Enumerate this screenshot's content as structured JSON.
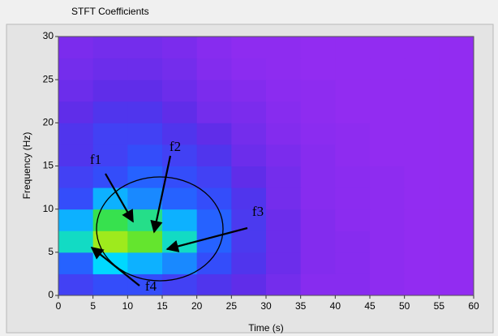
{
  "chart_data": {
    "type": "heatmap",
    "title": "STFT Coefficients",
    "x_label": "Time (s)",
    "y_label": "Frequency (Hz)",
    "xlim": [
      0,
      60
    ],
    "xticks": [
      0,
      5,
      10,
      15,
      20,
      25,
      30,
      35,
      40,
      45,
      50,
      55,
      60
    ],
    "ylim": [
      0,
      30
    ],
    "yticks": [
      0,
      5,
      10,
      15,
      20,
      25,
      30
    ],
    "x": [
      2.5,
      7.5,
      12.5,
      17.5,
      22.5,
      27.5,
      32.5,
      37.5,
      42.5,
      47.5,
      52.5,
      57.5
    ],
    "y": [
      1.25,
      3.75,
      6.25,
      8.75,
      11.25,
      13.75,
      16.25,
      18.75,
      21.25,
      23.75,
      26.25,
      28.75
    ],
    "zlim": [
      0,
      1
    ],
    "colormap": [
      "#9a2cf2",
      "#5a2de8",
      "#2a55ff",
      "#00d8ff",
      "#3de23a",
      "#fff200",
      "#ff2a00"
    ],
    "z": [
      [
        0.25,
        0.3,
        0.3,
        0.25,
        0.2,
        0.15,
        0.1,
        0.05,
        0.05,
        0.03,
        0.02,
        0.02
      ],
      [
        0.35,
        0.5,
        0.45,
        0.4,
        0.3,
        0.2,
        0.12,
        0.06,
        0.05,
        0.03,
        0.02,
        0.02
      ],
      [
        0.55,
        0.75,
        0.7,
        0.55,
        0.35,
        0.22,
        0.12,
        0.06,
        0.05,
        0.03,
        0.02,
        0.02
      ],
      [
        0.45,
        0.65,
        0.6,
        0.45,
        0.35,
        0.22,
        0.12,
        0.06,
        0.04,
        0.03,
        0.02,
        0.02
      ],
      [
        0.3,
        0.45,
        0.4,
        0.35,
        0.3,
        0.2,
        0.1,
        0.05,
        0.04,
        0.03,
        0.02,
        0.02
      ],
      [
        0.25,
        0.3,
        0.35,
        0.3,
        0.25,
        0.15,
        0.1,
        0.05,
        0.04,
        0.03,
        0.02,
        0.02
      ],
      [
        0.2,
        0.25,
        0.3,
        0.25,
        0.2,
        0.12,
        0.08,
        0.05,
        0.03,
        0.02,
        0.02,
        0.02
      ],
      [
        0.2,
        0.25,
        0.25,
        0.2,
        0.15,
        0.1,
        0.06,
        0.04,
        0.03,
        0.02,
        0.02,
        0.02
      ],
      [
        0.15,
        0.2,
        0.2,
        0.15,
        0.1,
        0.08,
        0.05,
        0.03,
        0.02,
        0.02,
        0.02,
        0.02
      ],
      [
        0.12,
        0.15,
        0.15,
        0.12,
        0.08,
        0.06,
        0.04,
        0.03,
        0.02,
        0.02,
        0.02,
        0.02
      ],
      [
        0.1,
        0.12,
        0.12,
        0.1,
        0.06,
        0.04,
        0.03,
        0.02,
        0.02,
        0.02,
        0.02,
        0.02
      ],
      [
        0.08,
        0.1,
        0.1,
        0.08,
        0.05,
        0.03,
        0.03,
        0.02,
        0.02,
        0.02,
        0.02,
        0.02
      ]
    ],
    "annotations": [
      "f1",
      "f2",
      "f3",
      "f4"
    ]
  }
}
